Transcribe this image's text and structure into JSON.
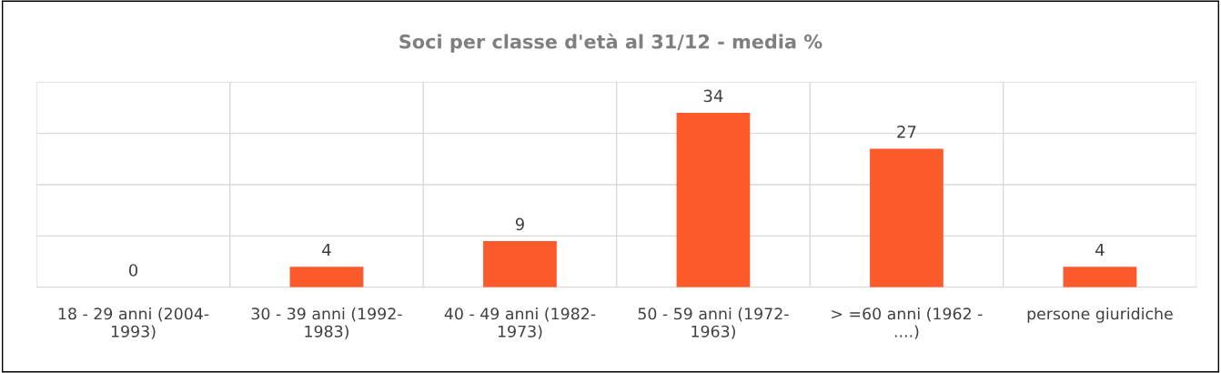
{
  "chart_data": {
    "type": "bar",
    "title": "Soci per classe d'età al 31/12 - media %",
    "categories": [
      "18 - 29 anni (2004-\n1993)",
      "30 - 39 anni (1992-\n1983)",
      "40 - 49 anni (1982-\n1973)",
      "50 - 59 anni (1972-\n1963)",
      "> =60 anni (1962 -\n....)",
      "persone giuridiche"
    ],
    "values": [
      0,
      4,
      9,
      34,
      27,
      4
    ],
    "color": "#fc5a2a",
    "ylim": [
      0,
      40
    ],
    "yticks": [
      {
        "value": 0,
        "label": null
      },
      {
        "value": 10,
        "label": null
      },
      {
        "value": 20,
        "label": null
      },
      {
        "value": 30,
        "label": null
      },
      {
        "value": 40,
        "label": null
      }
    ],
    "tick_labels": "x",
    "grid": true,
    "data_labels": true
  }
}
